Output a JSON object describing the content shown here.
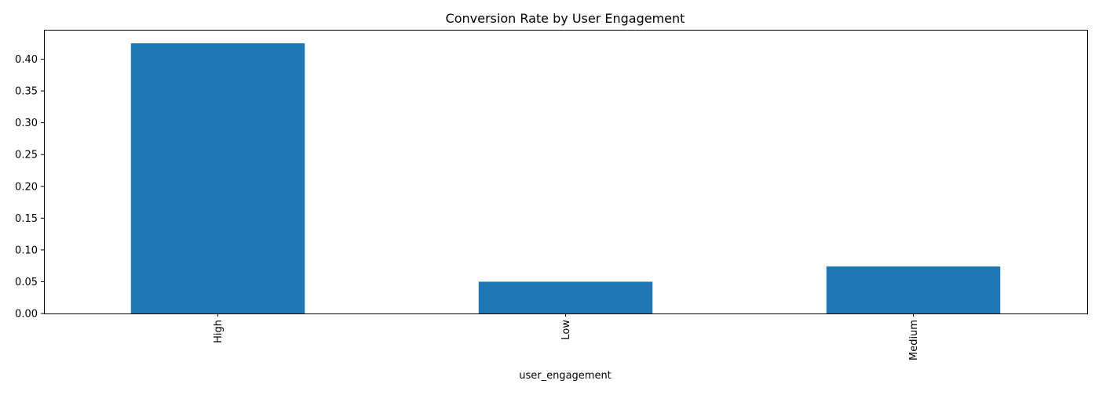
{
  "chart_data": {
    "type": "bar",
    "title": "Conversion Rate by User Engagement",
    "xlabel": "user_engagement",
    "ylabel": "",
    "categories": [
      "High",
      "Low",
      "Medium"
    ],
    "values": [
      0.425,
      0.05,
      0.074
    ],
    "ylim": [
      0,
      0.44625
    ],
    "yticks": [
      "0.00",
      "0.05",
      "0.10",
      "0.15",
      "0.20",
      "0.25",
      "0.30",
      "0.35",
      "0.40"
    ],
    "grid": false,
    "legend": "none",
    "bar_color": "#1f77b4"
  }
}
